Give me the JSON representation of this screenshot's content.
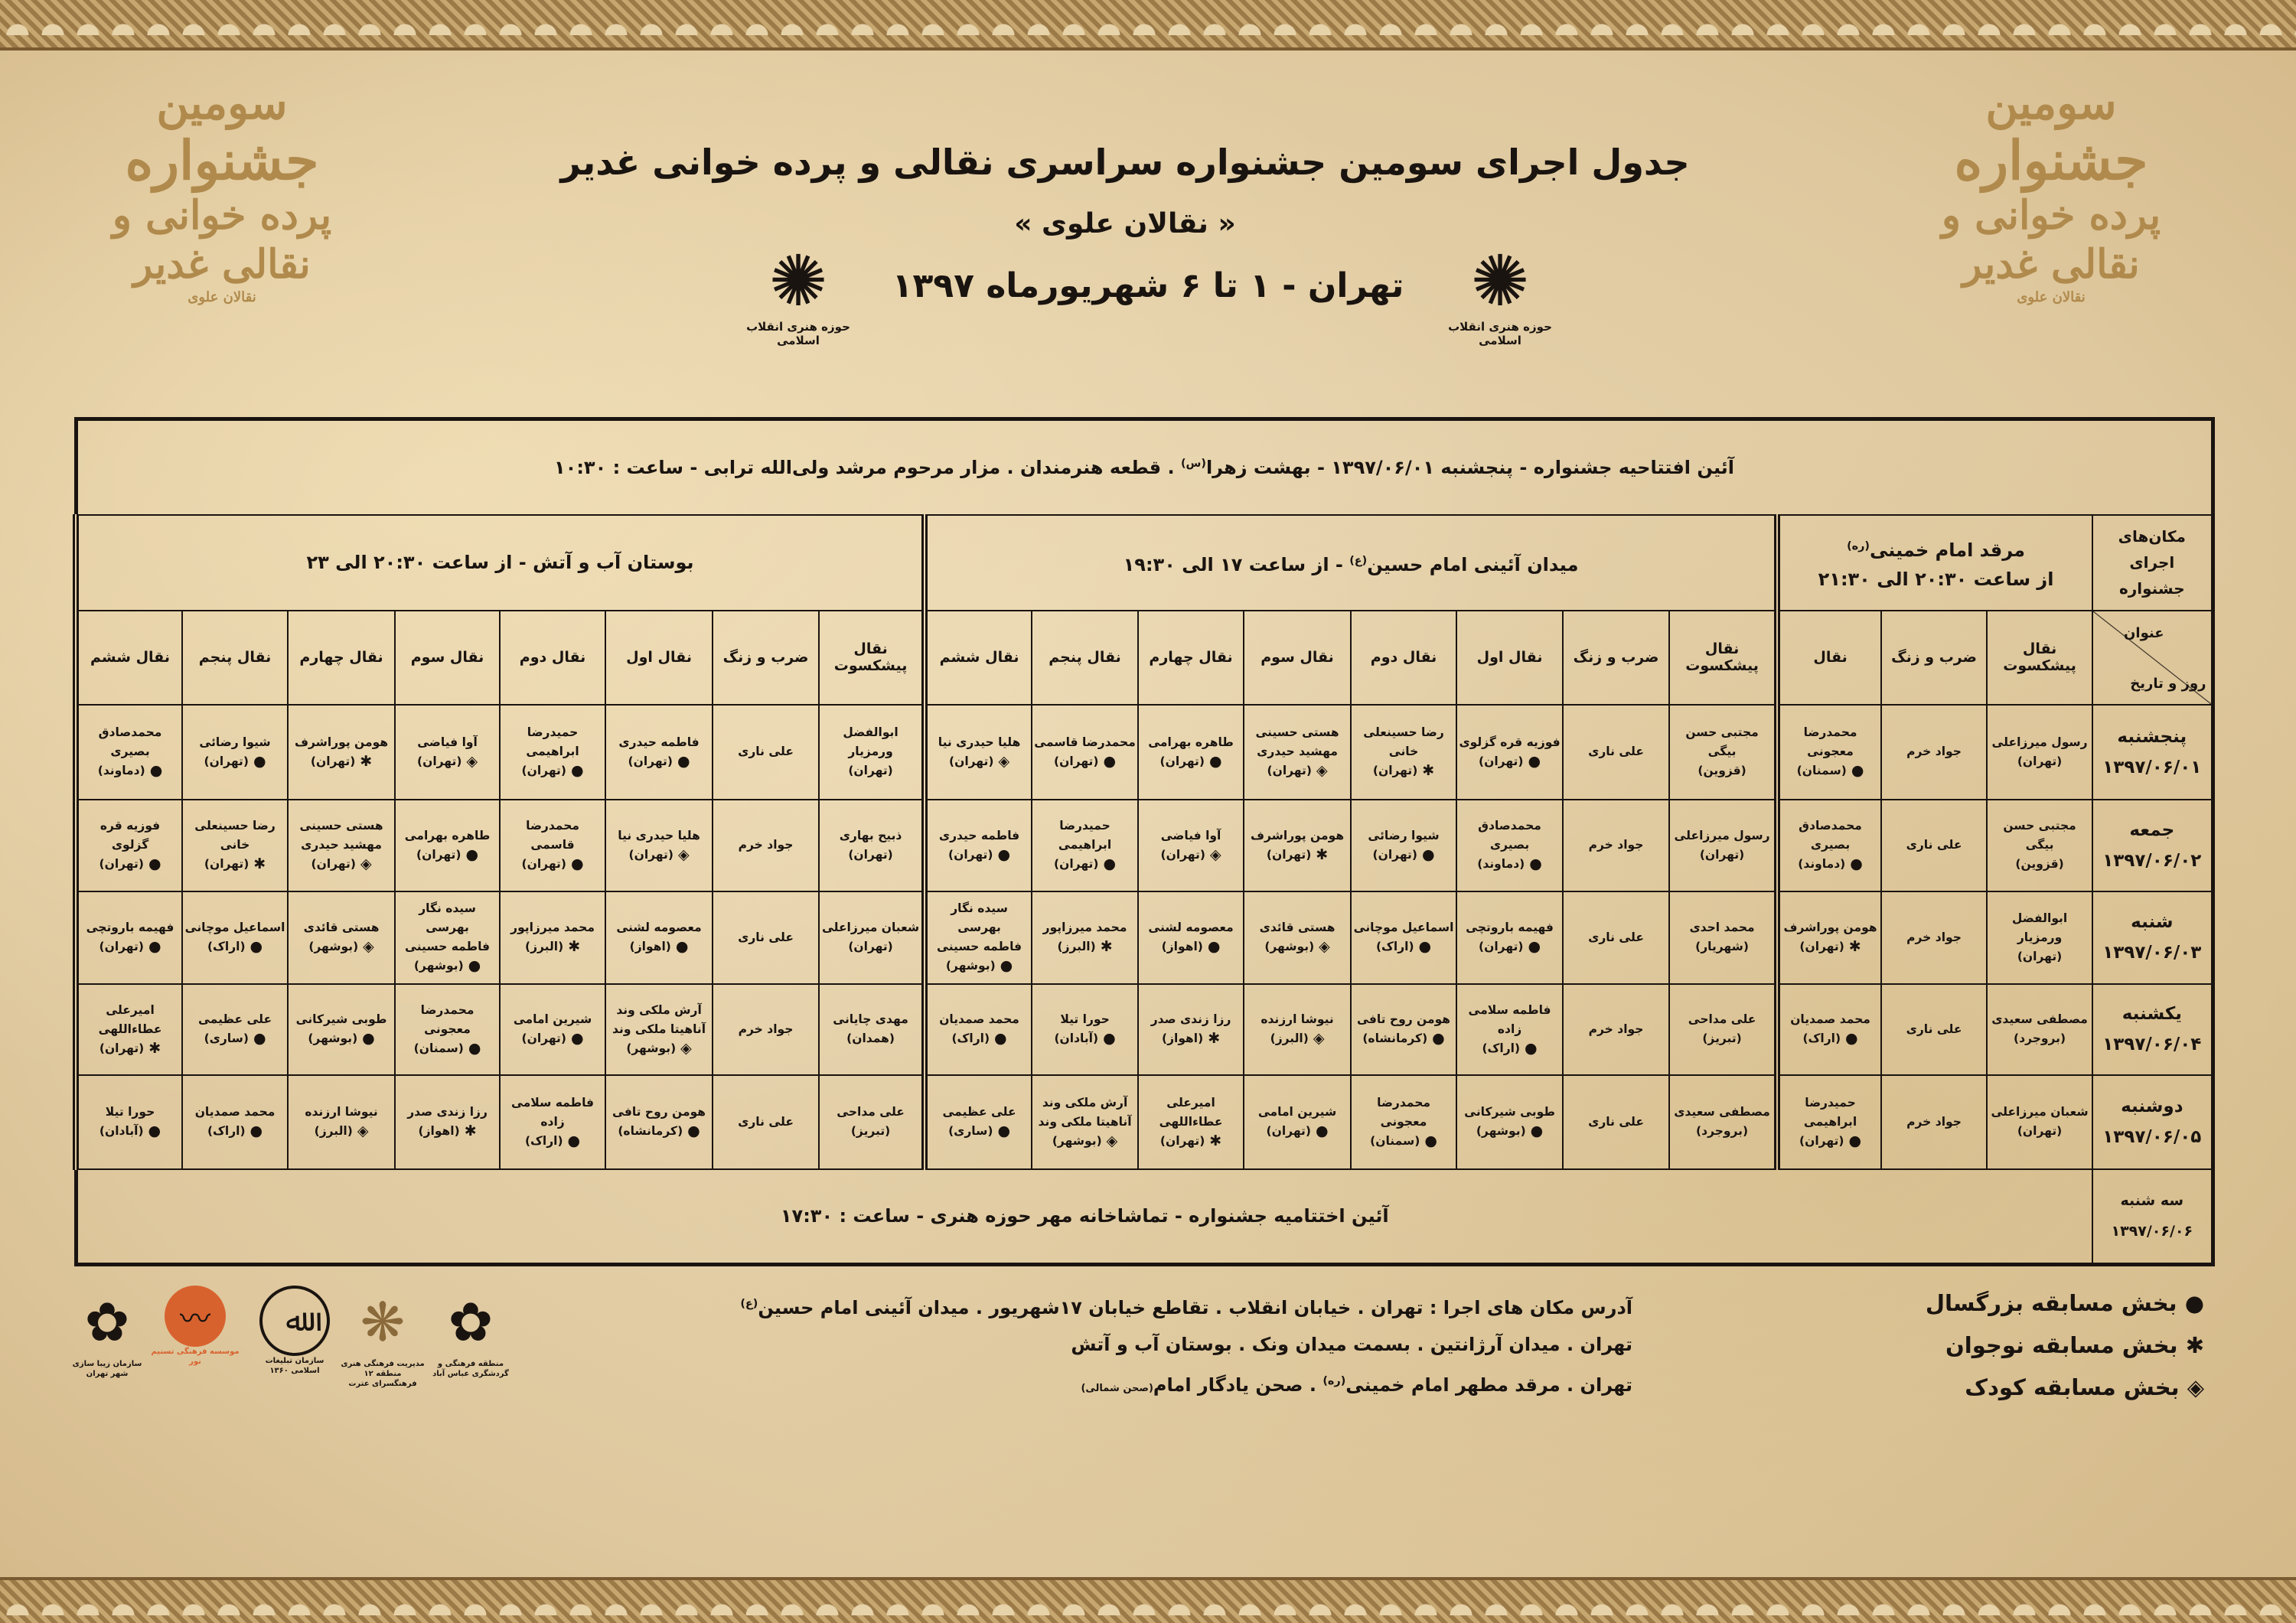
{
  "header": {
    "title": "جدول اجرای سومین جشنواره سراسری نقالی و پرده خوانی غدیر",
    "subtitle": "« نقالان علوی »",
    "date_line": "تهران - ۱ تا ۶ شهریورماه ۱۳۹۷",
    "hozeh_logo_caption": "حوزه هنری انقلاب اسلامی",
    "calligraphy": {
      "l1": "سومین",
      "l2": "جشنواره",
      "l3": "پرده خوانی و نقالی غدیر",
      "l4": "نقالان علوی"
    }
  },
  "opening": {
    "text_a": "آئین افتتاحیه جشنواره - پنجشنبه ۱۳۹۷/۰۶/۰۱ - بهشت زهرا",
    "sup": "(س)",
    "text_b": ". قطعه هنرمندان . مزار مرحوم مرشد ولی‌الله ترابی - ساعت : ۱۰:۳۰"
  },
  "venues_label": "مکان‌های اجرای جشنواره",
  "corner": {
    "top": "عنوان",
    "bottom": "روز و تاریخ"
  },
  "venues": [
    {
      "name": "مرقد امام خمینی",
      "sup": "(ره)",
      "time": "از ساعت ۲۰:۳۰ الی ۲۱:۳۰",
      "columns": [
        "نقال پیشکسوت",
        "ضرب و زنگ",
        "نقال"
      ]
    },
    {
      "name": "میدان آئینی امام حسین",
      "sup": "(ع)",
      "time": " - از ساعت ۱۷ الی ۱۹:۳۰",
      "columns": [
        "نقال پیشکسوت",
        "ضرب و زنگ",
        "نقال اول",
        "نقال دوم",
        "نقال سوم",
        "نقال چهارم",
        "نقال پنجم",
        "نقال ششم"
      ]
    },
    {
      "name": "بوستان آب و آتش",
      "sup": "",
      "time": " - از ساعت ۲۰:۳۰ الی ۲۳",
      "columns": [
        "نقال پیشکسوت",
        "ضرب و زنگ",
        "نقال اول",
        "نقال دوم",
        "نقال سوم",
        "نقال چهارم",
        "نقال پنجم",
        "نقال ششم"
      ]
    }
  ],
  "rows": [
    {
      "day": "پنجشنبه",
      "date": "۱۳۹۷/۰۶/۰۱",
      "cells": [
        [
          {
            "names": [
              "رسول میرزاعلی"
            ],
            "city": "(تهران)"
          },
          {
            "names": [
              "جواد خرم"
            ]
          },
          {
            "names": [
              "محمدرضا معجونی"
            ],
            "city": "(سمنان)",
            "category": "adult"
          }
        ],
        [
          {
            "names": [
              "مجتبی حسن بیگی"
            ],
            "city": "(قزوین)"
          },
          {
            "names": [
              "علی ناری"
            ]
          },
          {
            "names": [
              "فوزیه قره گزلوی"
            ],
            "city": "(تهران)",
            "category": "adult"
          },
          {
            "names": [
              "رضا حسینعلی خانی"
            ],
            "city": "(تهران)",
            "category": "teen"
          },
          {
            "names": [
              "هستی حسینی",
              "مهشید حیدری"
            ],
            "city": "(تهران)",
            "category": "child"
          },
          {
            "names": [
              "طاهره بهرامی"
            ],
            "city": "(تهران)",
            "category": "adult"
          },
          {
            "names": [
              "محمدرضا قاسمی"
            ],
            "city": "(تهران)",
            "category": "adult"
          },
          {
            "names": [
              "هلیا حیدری نیا"
            ],
            "city": "(تهران)",
            "category": "child"
          }
        ],
        [
          {
            "names": [
              "ابوالفضل ورمزیار"
            ],
            "city": "(تهران)"
          },
          {
            "names": [
              "علی ناری"
            ]
          },
          {
            "names": [
              "فاطمه حیدری"
            ],
            "city": "(تهران)",
            "category": "adult"
          },
          {
            "names": [
              "حمیدرضا ابراهیمی"
            ],
            "city": "(تهران)",
            "category": "adult"
          },
          {
            "names": [
              "آوا فیاضی"
            ],
            "city": "(تهران)",
            "category": "child"
          },
          {
            "names": [
              "هومن پوراشرف"
            ],
            "city": "(تهران)",
            "category": "teen"
          },
          {
            "names": [
              "شیوا رضائی"
            ],
            "city": "(تهران)",
            "category": "adult"
          },
          {
            "names": [
              "محمدصادق بصیری"
            ],
            "city": "(دماوند)",
            "category": "adult"
          }
        ]
      ]
    },
    {
      "day": "جمعه",
      "date": "۱۳۹۷/۰۶/۰۲",
      "cells": [
        [
          {
            "names": [
              "مجتبی حسن بیگی"
            ],
            "city": "(قزوین)"
          },
          {
            "names": [
              "علی ناری"
            ]
          },
          {
            "names": [
              "محمدصادق بصیری"
            ],
            "city": "(دماوند)",
            "category": "adult"
          }
        ],
        [
          {
            "names": [
              "رسول میرزاعلی"
            ],
            "city": "(تهران)"
          },
          {
            "names": [
              "جواد خرم"
            ]
          },
          {
            "names": [
              "محمدصادق بصیری"
            ],
            "city": "(دماوند)",
            "category": "adult"
          },
          {
            "names": [
              "شیوا رضائی"
            ],
            "city": "(تهران)",
            "category": "adult"
          },
          {
            "names": [
              "هومن پوراشرف"
            ],
            "city": "(تهران)",
            "category": "teen"
          },
          {
            "names": [
              "آوا فیاضی"
            ],
            "city": "(تهران)",
            "category": "child"
          },
          {
            "names": [
              "حمیدرضا ابراهیمی"
            ],
            "city": "(تهران)",
            "category": "adult"
          },
          {
            "names": [
              "فاطمه حیدری"
            ],
            "city": "(تهران)",
            "category": "adult"
          }
        ],
        [
          {
            "names": [
              "ذبیح بهاری"
            ],
            "city": "(تهران)"
          },
          {
            "names": [
              "جواد خرم"
            ]
          },
          {
            "names": [
              "هلیا حیدری نیا"
            ],
            "city": "(تهران)",
            "category": "child"
          },
          {
            "names": [
              "محمدرضا قاسمی"
            ],
            "city": "(تهران)",
            "category": "adult"
          },
          {
            "names": [
              "طاهره بهرامی"
            ],
            "city": "(تهران)",
            "category": "adult"
          },
          {
            "names": [
              "هستی حسینی",
              "مهشید حیدری"
            ],
            "city": "(تهران)",
            "category": "child"
          },
          {
            "names": [
              "رضا حسینعلی خانی"
            ],
            "city": "(تهران)",
            "category": "teen"
          },
          {
            "names": [
              "فوزیه قره گزلوی"
            ],
            "city": "(تهران)",
            "category": "adult"
          }
        ]
      ]
    },
    {
      "day": "شنبه",
      "date": "۱۳۹۷/۰۶/۰۳",
      "cells": [
        [
          {
            "names": [
              "ابوالفضل ورمزیار"
            ],
            "city": "(تهران)"
          },
          {
            "names": [
              "جواد خرم"
            ]
          },
          {
            "names": [
              "هومن پوراشرف"
            ],
            "city": "(تهران)",
            "category": "teen"
          }
        ],
        [
          {
            "names": [
              "محمد احدی"
            ],
            "city": "(شهریار)"
          },
          {
            "names": [
              "علی ناری"
            ]
          },
          {
            "names": [
              "فهیمه باروتچی"
            ],
            "city": "(تهران)",
            "category": "adult"
          },
          {
            "names": [
              "اسماعیل موچانی"
            ],
            "city": "(اراک)",
            "category": "adult"
          },
          {
            "names": [
              "هستی قائدی"
            ],
            "city": "(بوشهر)",
            "category": "child"
          },
          {
            "names": [
              "معصومه لشنی"
            ],
            "city": "(اهواز)",
            "category": "adult"
          },
          {
            "names": [
              "محمد میرزاپور"
            ],
            "city": "(البرز)",
            "category": "teen"
          },
          {
            "names": [
              "سیده نگار بهرسی",
              "فاطمه حسینی"
            ],
            "city": "(بوشهر)",
            "category": "adult"
          }
        ],
        [
          {
            "names": [
              "شعبان میرزاعلی"
            ],
            "city": "(تهران)"
          },
          {
            "names": [
              "علی ناری"
            ]
          },
          {
            "names": [
              "معصومه لشنی"
            ],
            "city": "(اهواز)",
            "category": "adult"
          },
          {
            "names": [
              "محمد میرزاپور"
            ],
            "city": "(البرز)",
            "category": "teen"
          },
          {
            "names": [
              "سیده نگار بهرسی",
              "فاطمه حسینی"
            ],
            "city": "(بوشهر)",
            "category": "adult"
          },
          {
            "names": [
              "هستی قائدی"
            ],
            "city": "(بوشهر)",
            "category": "child"
          },
          {
            "names": [
              "اسماعیل موچانی"
            ],
            "city": "(اراک)",
            "category": "adult"
          },
          {
            "names": [
              "فهیمه باروتچی"
            ],
            "city": "(تهران)",
            "category": "adult"
          }
        ]
      ]
    },
    {
      "day": "یکشنبه",
      "date": "۱۳۹۷/۰۶/۰۴",
      "cells": [
        [
          {
            "names": [
              "مصطفی سعیدی"
            ],
            "city": "(بروجرد)"
          },
          {
            "names": [
              "علی ناری"
            ]
          },
          {
            "names": [
              "محمد صمدیان"
            ],
            "city": "(اراک)",
            "category": "adult"
          }
        ],
        [
          {
            "names": [
              "علی مداحی"
            ],
            "city": "(تبریز)"
          },
          {
            "names": [
              "جواد خرم"
            ]
          },
          {
            "names": [
              "فاطمه سلامی زاده"
            ],
            "city": "(اراک)",
            "category": "adult"
          },
          {
            "names": [
              "هومن روح تافی"
            ],
            "city": "(کرمانشاه)",
            "category": "adult"
          },
          {
            "names": [
              "نیوشا ارزنده"
            ],
            "city": "(البرز)",
            "category": "child"
          },
          {
            "names": [
              "رزا زندی صدر"
            ],
            "city": "(اهواز)",
            "category": "teen"
          },
          {
            "names": [
              "حورا تیلا"
            ],
            "city": "(آبادان)",
            "category": "adult"
          },
          {
            "names": [
              "محمد صمدیان"
            ],
            "city": "(اراک)",
            "category": "adult"
          }
        ],
        [
          {
            "names": [
              "مهدی چایانی"
            ],
            "city": "(همدان)"
          },
          {
            "names": [
              "جواد خرم"
            ]
          },
          {
            "names": [
              "آرش ملکی وند",
              "آناهیتا ملکی وند"
            ],
            "city": "(بوشهر)",
            "category": "child"
          },
          {
            "names": [
              "شیرین امامی"
            ],
            "city": "(تهران)",
            "category": "adult"
          },
          {
            "names": [
              "محمدرضا معجونی"
            ],
            "city": "(سمنان)",
            "category": "adult"
          },
          {
            "names": [
              "طوبی شیرکانی"
            ],
            "city": "(بوشهر)",
            "category": "adult"
          },
          {
            "names": [
              "علی عظیمی"
            ],
            "city": "(ساری)",
            "category": "adult"
          },
          {
            "names": [
              "امیرعلی عطاءاللهی"
            ],
            "city": "(تهران)",
            "category": "teen"
          }
        ]
      ]
    },
    {
      "day": "دوشنبه",
      "date": "۱۳۹۷/۰۶/۰۵",
      "cells": [
        [
          {
            "names": [
              "شعبان میرزاعلی"
            ],
            "city": "(تهران)"
          },
          {
            "names": [
              "جواد خرم"
            ]
          },
          {
            "names": [
              "حمیدرضا ابراهیمی"
            ],
            "city": "(تهران)",
            "category": "adult"
          }
        ],
        [
          {
            "names": [
              "مصطفی سعیدی"
            ],
            "city": "(بروجرد)"
          },
          {
            "names": [
              "علی ناری"
            ]
          },
          {
            "names": [
              "طوبی شیرکانی"
            ],
            "city": "(بوشهر)",
            "category": "adult"
          },
          {
            "names": [
              "محمدرضا معجونی"
            ],
            "city": "(سمنان)",
            "category": "adult"
          },
          {
            "names": [
              "شیرین امامی"
            ],
            "city": "(تهران)",
            "category": "adult"
          },
          {
            "names": [
              "امیرعلی عطاءاللهی"
            ],
            "city": "(تهران)",
            "category": "teen"
          },
          {
            "names": [
              "آرش ملکی وند",
              "آناهیتا ملکی وند"
            ],
            "city": "(بوشهر)",
            "category": "child"
          },
          {
            "names": [
              "علی عظیمی"
            ],
            "city": "(ساری)",
            "category": "adult"
          }
        ],
        [
          {
            "names": [
              "علی مداحی"
            ],
            "city": "(تبریز)"
          },
          {
            "names": [
              "علی ناری"
            ]
          },
          {
            "names": [
              "هومن روح تافی"
            ],
            "city": "(کرمانشاه)",
            "category": "adult"
          },
          {
            "names": [
              "فاطمه سلامی زاده"
            ],
            "city": "(اراک)",
            "category": "adult"
          },
          {
            "names": [
              "رزا زندی صدر"
            ],
            "city": "(اهواز)",
            "category": "teen"
          },
          {
            "names": [
              "نیوشا ارزنده"
            ],
            "city": "(البرز)",
            "category": "child"
          },
          {
            "names": [
              "محمد صمدیان"
            ],
            "city": "(اراک)",
            "category": "adult"
          },
          {
            "names": [
              "حورا تیلا"
            ],
            "city": "(آبادان)",
            "category": "adult"
          }
        ]
      ]
    }
  ],
  "closing": {
    "day": "سه شنبه",
    "date": "۱۳۹۷/۰۶/۰۶",
    "text": "آئین اختتامیه جشنواره - تماشاخانه مهر حوزه هنری - ساعت : ۱۷:۳۰"
  },
  "address": {
    "line1": "آدرس مکان های اجرا : تهران . خیابان انقلاب . تقاطع خیابان ۱۷شهریور . میدان آئینی امام حسین",
    "line1_sup": "(ع)",
    "line2": "تهران . میدان آرژانتین . بسمت میدان ونک . بوستان آب و آتش",
    "line3": "تهران . مرقد مطهر امام خمینی",
    "line3_sup": "(ره)",
    "line3_b": ". صحن یادگار امام",
    "line3_small": "(صحن شمالی)"
  },
  "legend": {
    "adult": {
      "icon": "filled-circle",
      "glyph": "●",
      "label": "بخش مسابقه بزرگسال"
    },
    "teen": {
      "icon": "asterisk",
      "glyph": "✱",
      "label": "بخش مسابقه نوجوان"
    },
    "child": {
      "icon": "diamond",
      "glyph": "◈",
      "label": "بخش مسابقه کودک"
    }
  },
  "sponsor_logos": [
    {
      "caption": "منطقه فرهنگی و گردشگری عباس آباد",
      "icon": "tehran-star-emblem"
    },
    {
      "caption": "مدیریت فرهنگی هنری منطقه ۱۲ فرهنگسرای عترت",
      "icon": "flower-rosette"
    },
    {
      "caption": "سازمان تبلیغات اسلامی ۱۳۶۰",
      "icon": "circle-calligraphy-emblem"
    },
    {
      "caption": "موسسه فرهنگی تسنیم نور",
      "icon": "orange-wave-emblem"
    },
    {
      "caption": "سازمان زیبا سازی شهر تهران",
      "icon": "tehran-star-emblem"
    }
  ],
  "colors": {
    "ink": "#1a1410",
    "parchment": "#e6d3ae",
    "calligraphy_gold": "#b08a4c",
    "border_band": "#a9875a",
    "sponsor_orange": "#d8622e"
  }
}
